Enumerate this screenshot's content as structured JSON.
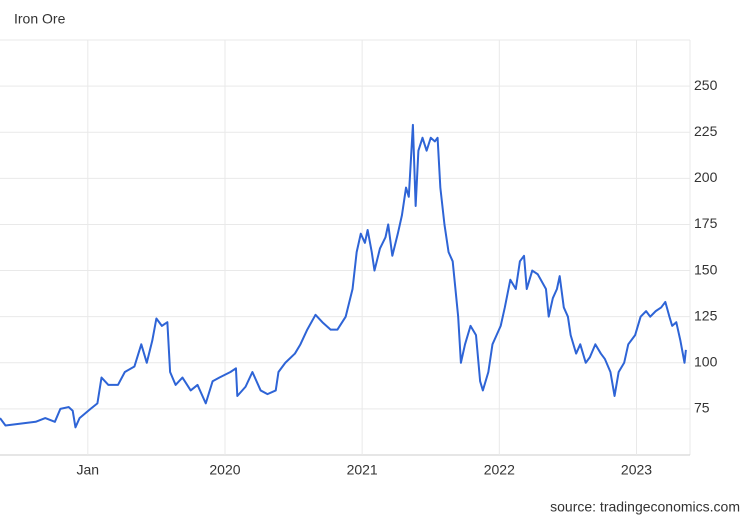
{
  "chart_data": {
    "type": "line",
    "title": "Iron Ore",
    "source": "source: tradingeconomics.com",
    "xlim": [
      2018.36,
      2023.39
    ],
    "xticks": [
      {
        "value": 2019,
        "label": "Jan"
      },
      2020,
      2021,
      2022,
      2023
    ],
    "ylim": [
      50,
      275
    ],
    "yticks": [
      75,
      100,
      125,
      150,
      175,
      200,
      225,
      250
    ],
    "grid": true,
    "series": [
      {
        "name": "Iron Ore",
        "color": "#2e64d6",
        "x": [
          2018.36,
          2018.4,
          2018.51,
          2018.62,
          2018.69,
          2018.76,
          2018.8,
          2018.86,
          2018.89,
          2018.91,
          2018.94,
          2019.02,
          2019.07,
          2019.1,
          2019.15,
          2019.22,
          2019.27,
          2019.34,
          2019.39,
          2019.43,
          2019.47,
          2019.5,
          2019.54,
          2019.58,
          2019.6,
          2019.64,
          2019.69,
          2019.75,
          2019.8,
          2019.86,
          2019.91,
          2019.96,
          2020.04,
          2020.08,
          2020.09,
          2020.15,
          2020.2,
          2020.26,
          2020.31,
          2020.37,
          2020.39,
          2020.44,
          2020.51,
          2020.55,
          2020.6,
          2020.66,
          2020.71,
          2020.77,
          2020.82,
          2020.88,
          2020.93,
          2020.96,
          2020.99,
          2021.02,
          2021.04,
          2021.07,
          2021.09,
          2021.13,
          2021.17,
          2021.19,
          2021.22,
          2021.26,
          2021.29,
          2021.32,
          2021.34,
          2021.37,
          2021.39,
          2021.41,
          2021.44,
          2021.47,
          2021.5,
          2021.53,
          2021.55,
          2021.57,
          2021.6,
          2021.63,
          2021.66,
          2021.68,
          2021.7,
          2021.72,
          2021.75,
          2021.79,
          2021.83,
          2021.86,
          2021.88,
          2021.92,
          2021.95,
          2021.98,
          2022.01,
          2022.04,
          2022.08,
          2022.12,
          2022.15,
          2022.18,
          2022.2,
          2022.24,
          2022.28,
          2022.34,
          2022.36,
          2022.39,
          2022.42,
          2022.44,
          2022.47,
          2022.5,
          2022.52,
          2022.56,
          2022.59,
          2022.63,
          2022.66,
          2022.7,
          2022.74,
          2022.77,
          2022.81,
          2022.84,
          2022.87,
          2022.91,
          2022.94,
          2022.99,
          2023.03,
          2023.07,
          2023.1,
          2023.14,
          2023.18,
          2023.21,
          2023.24,
          2023.26,
          2023.29,
          2023.32,
          2023.35,
          2023.36
        ],
        "values": [
          70,
          66,
          67,
          68,
          70,
          68,
          75,
          76,
          74,
          65,
          70,
          75,
          78,
          92,
          88,
          88,
          95,
          98,
          110,
          100,
          112,
          124,
          120,
          122,
          95,
          88,
          92,
          85,
          88,
          78,
          90,
          92,
          95,
          97,
          82,
          87,
          95,
          85,
          83,
          85,
          95,
          100,
          105,
          110,
          118,
          126,
          122,
          118,
          118,
          125,
          140,
          160,
          170,
          165,
          172,
          160,
          150,
          162,
          168,
          175,
          158,
          170,
          180,
          195,
          190,
          229,
          185,
          215,
          222,
          215,
          222,
          220,
          222,
          195,
          175,
          160,
          155,
          140,
          125,
          100,
          110,
          120,
          115,
          90,
          85,
          95,
          110,
          115,
          120,
          130,
          145,
          140,
          155,
          158,
          140,
          150,
          148,
          140,
          125,
          135,
          140,
          147,
          130,
          125,
          115,
          105,
          110,
          100,
          103,
          110,
          105,
          102,
          95,
          82,
          95,
          100,
          110,
          115,
          125,
          128,
          125,
          128,
          130,
          133,
          125,
          120,
          122,
          112,
          100,
          107
        ]
      }
    ]
  }
}
